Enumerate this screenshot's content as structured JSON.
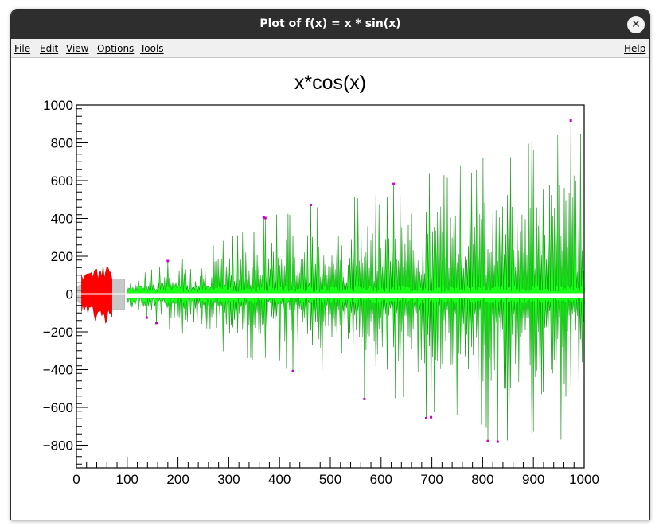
{
  "window": {
    "title": "Plot of f(x) = x * sin(x)",
    "close_glyph": "✕"
  },
  "menu": {
    "file": "File",
    "edit": "Edit",
    "view": "View",
    "options": "Options",
    "tools": "Tools",
    "help": "Help"
  },
  "colors": {
    "envelope": "#00ff00",
    "central_fill": "#ff0000",
    "band_fill": "#c8c8c8",
    "marker": "#cc00cc"
  },
  "chart_data": {
    "type": "area",
    "title": "x*cos(x)",
    "xlabel": "",
    "ylabel": "",
    "xlim": [
      0,
      1000
    ],
    "ylim": [
      -920,
      1000
    ],
    "grid": false,
    "x_ticks": [
      "0",
      "100",
      "200",
      "300",
      "400",
      "500",
      "600",
      "700",
      "800",
      "900",
      "1000"
    ],
    "y_ticks": [
      "−800",
      "−600",
      "−400",
      "−200",
      "0",
      "200",
      "400",
      "600",
      "800",
      "1000"
    ],
    "x_tick_values": [
      0,
      100,
      200,
      300,
      400,
      500,
      600,
      700,
      800,
      900,
      1000
    ],
    "y_tick_values": [
      -800,
      -600,
      -400,
      -200,
      0,
      200,
      400,
      600,
      800,
      1000
    ],
    "series": [
      {
        "role": "upper-envelope",
        "x": [
          0,
          100,
          200,
          300,
          400,
          500,
          600,
          700,
          800,
          900,
          1000
        ],
        "y": [
          0,
          85,
          200,
          310,
          455,
          500,
          560,
          690,
          760,
          880,
          960
        ]
      },
      {
        "role": "lower-envelope",
        "x": [
          0,
          100,
          200,
          300,
          400,
          500,
          600,
          700,
          800,
          900,
          1000
        ],
        "y": [
          0,
          -60,
          -230,
          -330,
          -405,
          -450,
          -615,
          -665,
          -785,
          -850,
          -870
        ]
      },
      {
        "role": "central-fill",
        "x": [
          10,
          25,
          45,
          70
        ],
        "y": [
          110,
          120,
          160,
          160
        ]
      },
      {
        "role": "band-fill",
        "x": [
          0,
          20,
          60,
          95
        ],
        "y": [
          40,
          60,
          80,
          80
        ]
      }
    ]
  }
}
